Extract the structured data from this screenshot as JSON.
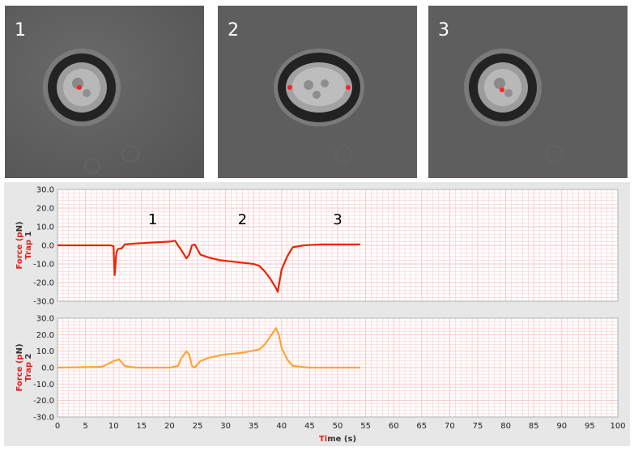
{
  "panels": [
    {
      "label": "1",
      "cell_state": "relaxed"
    },
    {
      "label": "2",
      "cell_state": "stretched"
    },
    {
      "label": "3",
      "cell_state": "relaxed"
    }
  ],
  "colors": {
    "trap1": "#ee2200",
    "trap2": "#ffa533",
    "grid": "#f7c4c4",
    "plot_bg": "#ffffff",
    "frame_bg": "#e7e7e7",
    "axis_label_red": "#e02020",
    "axis_label_dark": "#333333"
  },
  "chart_data": [
    {
      "type": "line",
      "ylabel": "Force (pN)",
      "ylabel_sub": "Trap 1",
      "ylim": [
        -30,
        30
      ],
      "yticks": [
        "30.0",
        "20.0",
        "10.0",
        "0.0",
        "-10.0",
        "-20.0",
        "-30.0"
      ],
      "grid": true,
      "annotations": [
        {
          "text": "1",
          "x": 17,
          "y": 6
        },
        {
          "text": "2",
          "x": 33,
          "y": 6
        },
        {
          "text": "3",
          "x": 50,
          "y": 6
        }
      ],
      "series": [
        {
          "color": "#ee2200",
          "points": [
            [
              0,
              0
            ],
            [
              9.5,
              0
            ],
            [
              10,
              -0.5
            ],
            [
              10.2,
              -16
            ],
            [
              10.5,
              -4
            ],
            [
              10.8,
              -2
            ],
            [
              11.5,
              -1.5
            ],
            [
              12,
              0.5
            ],
            [
              14,
              1
            ],
            [
              17,
              1.5
            ],
            [
              20,
              2
            ],
            [
              21,
              2.5
            ],
            [
              21.5,
              0
            ],
            [
              22,
              -2
            ],
            [
              23,
              -7
            ],
            [
              23.5,
              -5
            ],
            [
              24,
              0
            ],
            [
              24.5,
              0.5
            ],
            [
              25.5,
              -5
            ],
            [
              27,
              -6.5
            ],
            [
              29,
              -8
            ],
            [
              32,
              -9
            ],
            [
              35,
              -10
            ],
            [
              36,
              -11
            ],
            [
              37,
              -14
            ],
            [
              38,
              -18
            ],
            [
              39,
              -23
            ],
            [
              39.3,
              -25
            ],
            [
              39.6,
              -20
            ],
            [
              40,
              -13
            ],
            [
              41,
              -6
            ],
            [
              42,
              -1
            ],
            [
              44,
              0
            ],
            [
              47,
              0.5
            ],
            [
              50,
              0.5
            ],
            [
              53,
              0.5
            ],
            [
              54,
              0.5
            ]
          ]
        }
      ]
    },
    {
      "type": "line",
      "ylabel": "Force (pN)",
      "ylabel_sub": "Trap 2",
      "xlabel": "Time (s)",
      "ylim": [
        -30,
        30
      ],
      "xlim": [
        0,
        100
      ],
      "yticks": [
        "30.0",
        "20.0",
        "10.0",
        "0.0",
        "-10.0",
        "-20.0",
        "-30.0"
      ],
      "xticks": [
        "0",
        "5",
        "10",
        "15",
        "20",
        "25",
        "30",
        "35",
        "40",
        "45",
        "50",
        "55",
        "60",
        "65",
        "70",
        "75",
        "80",
        "85",
        "90",
        "95",
        "100"
      ],
      "grid": true,
      "series": [
        {
          "color": "#ffa533",
          "points": [
            [
              0,
              0
            ],
            [
              8,
              0.5
            ],
            [
              10,
              4
            ],
            [
              11,
              5
            ],
            [
              12,
              1
            ],
            [
              14,
              0
            ],
            [
              20,
              0
            ],
            [
              21.5,
              1
            ],
            [
              22,
              5
            ],
            [
              23,
              10
            ],
            [
              23.5,
              8
            ],
            [
              24,
              1
            ],
            [
              24.5,
              0
            ],
            [
              25.5,
              4
            ],
            [
              27,
              6
            ],
            [
              30,
              8
            ],
            [
              33,
              9
            ],
            [
              36,
              11
            ],
            [
              37,
              14
            ],
            [
              38,
              19
            ],
            [
              39,
              24
            ],
            [
              39.5,
              20
            ],
            [
              40,
              12
            ],
            [
              41,
              5
            ],
            [
              42,
              1
            ],
            [
              45,
              0
            ],
            [
              50,
              0
            ],
            [
              54,
              0
            ]
          ]
        }
      ]
    }
  ]
}
